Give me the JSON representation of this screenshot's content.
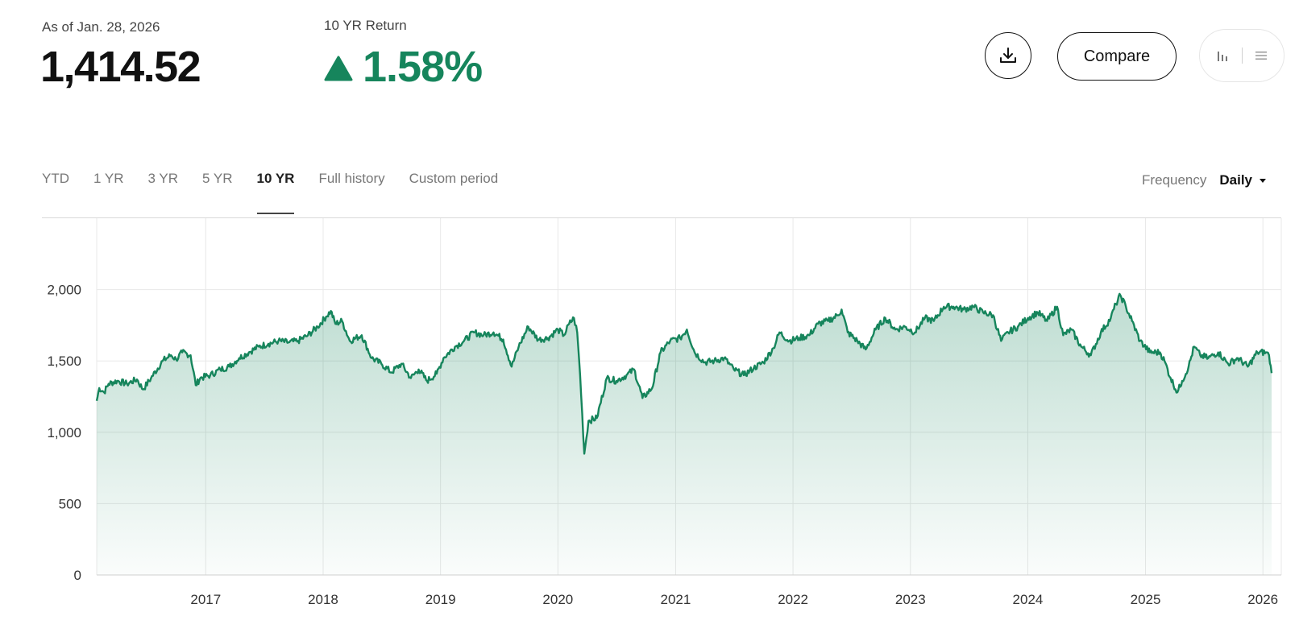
{
  "header": {
    "as_of_label": "As of Jan. 28, 2026",
    "value": "1,414.52",
    "return_label": "10 YR Return",
    "return_value": "1.58%",
    "return_direction": "up",
    "return_icon": "triangle-up-icon",
    "positive_color": "#16855c"
  },
  "actions": {
    "download_icon": "download-icon",
    "compare_label": "Compare",
    "view_icons": [
      "bar-chart-icon",
      "list-icon"
    ]
  },
  "tabs": [
    {
      "label": "YTD",
      "active": false
    },
    {
      "label": "1 YR",
      "active": false
    },
    {
      "label": "3 YR",
      "active": false
    },
    {
      "label": "5 YR",
      "active": false
    },
    {
      "label": "10 YR",
      "active": true
    },
    {
      "label": "Full history",
      "active": false
    },
    {
      "label": "Custom period",
      "active": false
    }
  ],
  "frequency": {
    "label": "Frequency",
    "value": "Daily",
    "icon": "caret-down-icon"
  },
  "chart_data": {
    "type": "area",
    "line_color": "#16855c",
    "grid": true,
    "ylim": [
      0,
      2500
    ],
    "yticks": [
      "0",
      "500",
      "1,000",
      "1,500",
      "2,000"
    ],
    "yticks_values": [
      0,
      500,
      1000,
      1500,
      2000
    ],
    "xlim": [
      "2016-01-28",
      "2026-01-28"
    ],
    "xticks": [
      "2017",
      "2018",
      "2019",
      "2020",
      "2021",
      "2022",
      "2023",
      "2024",
      "2025",
      "2026"
    ],
    "series": [
      {
        "values": [
          [
            "2016-01-28",
            1220
          ],
          [
            "2016-02-05",
            1310
          ],
          [
            "2016-02-20",
            1280
          ],
          [
            "2016-03-05",
            1340
          ],
          [
            "2016-04-01",
            1360
          ],
          [
            "2016-05-01",
            1340
          ],
          [
            "2016-06-01",
            1370
          ],
          [
            "2016-06-20",
            1300
          ],
          [
            "2016-07-15",
            1380
          ],
          [
            "2016-08-20",
            1500
          ],
          [
            "2016-09-15",
            1540
          ],
          [
            "2016-10-01",
            1510
          ],
          [
            "2016-10-20",
            1560
          ],
          [
            "2016-11-15",
            1540
          ],
          [
            "2016-12-01",
            1330
          ],
          [
            "2016-12-15",
            1380
          ],
          [
            "2017-01-15",
            1400
          ],
          [
            "2017-02-15",
            1440
          ],
          [
            "2017-03-15",
            1460
          ],
          [
            "2017-04-15",
            1520
          ],
          [
            "2017-05-15",
            1560
          ],
          [
            "2017-06-15",
            1600
          ],
          [
            "2017-07-15",
            1620
          ],
          [
            "2017-08-15",
            1640
          ],
          [
            "2017-09-15",
            1630
          ],
          [
            "2017-10-15",
            1640
          ],
          [
            "2017-11-15",
            1680
          ],
          [
            "2017-12-15",
            1740
          ],
          [
            "2018-01-10",
            1810
          ],
          [
            "2018-01-25",
            1850
          ],
          [
            "2018-02-08",
            1760
          ],
          [
            "2018-03-01",
            1780
          ],
          [
            "2018-03-25",
            1640
          ],
          [
            "2018-05-01",
            1680
          ],
          [
            "2018-06-01",
            1520
          ],
          [
            "2018-07-01",
            1480
          ],
          [
            "2018-08-01",
            1420
          ],
          [
            "2018-09-01",
            1480
          ],
          [
            "2018-10-01",
            1380
          ],
          [
            "2018-10-25",
            1440
          ],
          [
            "2018-11-20",
            1360
          ],
          [
            "2018-12-20",
            1410
          ],
          [
            "2019-01-10",
            1520
          ],
          [
            "2019-02-15",
            1600
          ],
          [
            "2019-03-15",
            1640
          ],
          [
            "2019-04-15",
            1700
          ],
          [
            "2019-05-15",
            1680
          ],
          [
            "2019-06-15",
            1700
          ],
          [
            "2019-07-15",
            1650
          ],
          [
            "2019-08-10",
            1460
          ],
          [
            "2019-09-01",
            1600
          ],
          [
            "2019-10-01",
            1740
          ],
          [
            "2019-11-01",
            1650
          ],
          [
            "2019-12-01",
            1660
          ],
          [
            "2020-01-01",
            1720
          ],
          [
            "2020-01-20",
            1680
          ],
          [
            "2020-02-05",
            1760
          ],
          [
            "2020-02-20",
            1800
          ],
          [
            "2020-03-01",
            1700
          ],
          [
            "2020-03-10",
            1400
          ],
          [
            "2020-03-23",
            850
          ],
          [
            "2020-04-05",
            1080
          ],
          [
            "2020-05-01",
            1100
          ],
          [
            "2020-06-01",
            1380
          ],
          [
            "2020-07-01",
            1360
          ],
          [
            "2020-08-01",
            1400
          ],
          [
            "2020-08-25",
            1440
          ],
          [
            "2020-09-20",
            1240
          ],
          [
            "2020-10-20",
            1310
          ],
          [
            "2020-11-15",
            1560
          ],
          [
            "2020-12-15",
            1640
          ],
          [
            "2021-01-15",
            1660
          ],
          [
            "2021-02-05",
            1720
          ],
          [
            "2021-03-01",
            1560
          ],
          [
            "2021-04-01",
            1490
          ],
          [
            "2021-05-01",
            1500
          ],
          [
            "2021-06-01",
            1520
          ],
          [
            "2021-07-01",
            1440
          ],
          [
            "2021-08-01",
            1400
          ],
          [
            "2021-09-01",
            1450
          ],
          [
            "2021-10-01",
            1490
          ],
          [
            "2021-11-01",
            1590
          ],
          [
            "2021-11-20",
            1700
          ],
          [
            "2021-12-20",
            1640
          ],
          [
            "2022-01-20",
            1660
          ],
          [
            "2022-02-20",
            1680
          ],
          [
            "2022-03-20",
            1760
          ],
          [
            "2022-04-20",
            1780
          ],
          [
            "2022-05-20",
            1820
          ],
          [
            "2022-06-01",
            1860
          ],
          [
            "2022-06-20",
            1700
          ],
          [
            "2022-07-20",
            1640
          ],
          [
            "2022-08-15",
            1580
          ],
          [
            "2022-09-15",
            1720
          ],
          [
            "2022-10-15",
            1800
          ],
          [
            "2022-11-15",
            1720
          ],
          [
            "2022-12-15",
            1740
          ],
          [
            "2023-01-15",
            1700
          ],
          [
            "2023-02-15",
            1800
          ],
          [
            "2023-03-15",
            1780
          ],
          [
            "2023-04-15",
            1880
          ],
          [
            "2023-05-15",
            1880
          ],
          [
            "2023-06-15",
            1860
          ],
          [
            "2023-07-15",
            1880
          ],
          [
            "2023-08-15",
            1840
          ],
          [
            "2023-09-15",
            1820
          ],
          [
            "2023-10-10",
            1640
          ],
          [
            "2023-11-01",
            1700
          ],
          [
            "2023-12-01",
            1740
          ],
          [
            "2024-01-01",
            1800
          ],
          [
            "2024-02-01",
            1840
          ],
          [
            "2024-03-01",
            1780
          ],
          [
            "2024-04-01",
            1880
          ],
          [
            "2024-04-20",
            1680
          ],
          [
            "2024-05-15",
            1720
          ],
          [
            "2024-06-15",
            1600
          ],
          [
            "2024-07-15",
            1540
          ],
          [
            "2024-08-15",
            1700
          ],
          [
            "2024-09-15",
            1800
          ],
          [
            "2024-10-01",
            1900
          ],
          [
            "2024-10-15",
            1960
          ],
          [
            "2024-11-01",
            1880
          ],
          [
            "2024-11-20",
            1780
          ],
          [
            "2024-12-15",
            1640
          ],
          [
            "2025-01-15",
            1560
          ],
          [
            "2025-02-15",
            1560
          ],
          [
            "2025-03-01",
            1500
          ],
          [
            "2025-03-20",
            1380
          ],
          [
            "2025-04-10",
            1280
          ],
          [
            "2025-04-25",
            1360
          ],
          [
            "2025-05-15",
            1460
          ],
          [
            "2025-06-01",
            1600
          ],
          [
            "2025-06-20",
            1540
          ],
          [
            "2025-07-15",
            1520
          ],
          [
            "2025-08-15",
            1560
          ],
          [
            "2025-09-15",
            1480
          ],
          [
            "2025-10-15",
            1520
          ],
          [
            "2025-11-15",
            1460
          ],
          [
            "2025-12-15",
            1560
          ],
          [
            "2026-01-10",
            1560
          ],
          [
            "2026-01-20",
            1540
          ],
          [
            "2026-01-28",
            1415
          ]
        ]
      }
    ]
  }
}
